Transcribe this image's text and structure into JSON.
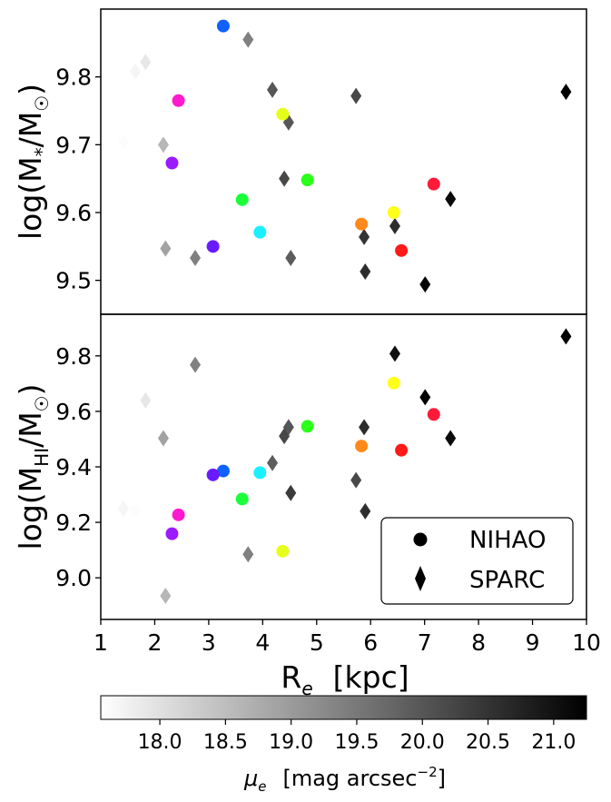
{
  "chart_data": {
    "type": "scatter",
    "x_axis": {
      "label_main": "R",
      "label_sub": "e",
      "label_unit": "[kpc]",
      "range": [
        1,
        10
      ],
      "ticks": [
        "1",
        "2",
        "3",
        "4",
        "5",
        "6",
        "7",
        "8",
        "9",
        "10"
      ]
    },
    "panels": [
      {
        "name": "top",
        "ylabel_prefix": "log(M",
        "ylabel_sub": "*",
        "ylabel_mid": "/M",
        "ylabel_sub2": "☉",
        "ylabel_suffix": ")",
        "ylim": [
          9.45,
          9.9
        ],
        "yticks": [
          "9.5",
          "9.6",
          "9.7",
          "9.8"
        ],
        "nihao": [
          {
            "x": 3.27,
            "y": 9.875,
            "color": "#0f62fe"
          },
          {
            "x": 2.44,
            "y": 9.765,
            "color": "#ff1ad0"
          },
          {
            "x": 4.37,
            "y": 9.745,
            "color": "#e6ff1a"
          },
          {
            "x": 2.32,
            "y": 9.673,
            "color": "#9b1aff"
          },
          {
            "x": 4.83,
            "y": 9.648,
            "color": "#2bff1a"
          },
          {
            "x": 7.17,
            "y": 9.642,
            "color": "#ff1a3a"
          },
          {
            "x": 3.62,
            "y": 9.619,
            "color": "#1aff3a"
          },
          {
            "x": 6.43,
            "y": 9.6,
            "color": "#ffff1a"
          },
          {
            "x": 5.83,
            "y": 9.583,
            "color": "#ff8a1a"
          },
          {
            "x": 3.95,
            "y": 9.571,
            "color": "#1af0ff"
          },
          {
            "x": 3.08,
            "y": 9.55,
            "color": "#6a1aff"
          },
          {
            "x": 6.57,
            "y": 9.544,
            "color": "#ff1a1a"
          }
        ],
        "sparc": [
          {
            "x": 3.73,
            "y": 9.855,
            "mu": 19.4
          },
          {
            "x": 1.83,
            "y": 9.822,
            "mu": 17.9
          },
          {
            "x": 1.64,
            "y": 9.808,
            "mu": 17.7
          },
          {
            "x": 4.18,
            "y": 9.781,
            "mu": 20.0
          },
          {
            "x": 9.62,
            "y": 9.778,
            "mu": 21.3
          },
          {
            "x": 5.73,
            "y": 9.772,
            "mu": 20.2
          },
          {
            "x": 4.48,
            "y": 9.733,
            "mu": 20.0
          },
          {
            "x": 1.42,
            "y": 9.705,
            "mu": 17.6
          },
          {
            "x": 2.16,
            "y": 9.7,
            "mu": 18.6
          },
          {
            "x": 4.4,
            "y": 9.65,
            "mu": 20.2
          },
          {
            "x": 7.48,
            "y": 9.62,
            "mu": 21.1
          },
          {
            "x": 6.45,
            "y": 9.58,
            "mu": 20.6
          },
          {
            "x": 5.88,
            "y": 9.564,
            "mu": 20.5
          },
          {
            "x": 2.2,
            "y": 9.547,
            "mu": 18.9
          },
          {
            "x": 2.75,
            "y": 9.533,
            "mu": 19.4
          },
          {
            "x": 4.52,
            "y": 9.533,
            "mu": 19.9
          },
          {
            "x": 5.9,
            "y": 9.513,
            "mu": 20.6
          },
          {
            "x": 7.01,
            "y": 9.494,
            "mu": 21.2
          }
        ]
      },
      {
        "name": "bottom",
        "ylabel_prefix": "log(M",
        "ylabel_sub": "HI",
        "ylabel_mid": "/M",
        "ylabel_sub2": "☉",
        "ylabel_suffix": ")",
        "ylim": [
          8.85,
          9.95
        ],
        "yticks": [
          "9.0",
          "9.2",
          "9.4",
          "9.6",
          "9.8"
        ],
        "nihao": [
          {
            "x": 6.43,
            "y": 9.702,
            "color": "#ffff1a"
          },
          {
            "x": 7.17,
            "y": 9.589,
            "color": "#ff1a3a"
          },
          {
            "x": 4.83,
            "y": 9.546,
            "color": "#2bff1a"
          },
          {
            "x": 5.83,
            "y": 9.475,
            "color": "#ff8a1a"
          },
          {
            "x": 6.57,
            "y": 9.46,
            "color": "#ff1a1a"
          },
          {
            "x": 3.27,
            "y": 9.385,
            "color": "#0f62fe"
          },
          {
            "x": 3.95,
            "y": 9.379,
            "color": "#1af0ff"
          },
          {
            "x": 3.08,
            "y": 9.371,
            "color": "#6a1aff"
          },
          {
            "x": 3.62,
            "y": 9.284,
            "color": "#1aff3a"
          },
          {
            "x": 2.44,
            "y": 9.227,
            "color": "#ff1ad0"
          },
          {
            "x": 2.32,
            "y": 9.159,
            "color": "#9b1aff"
          },
          {
            "x": 4.37,
            "y": 9.096,
            "color": "#e6ff1a"
          }
        ],
        "sparc": [
          {
            "x": 9.62,
            "y": 9.87,
            "mu": 21.3
          },
          {
            "x": 6.45,
            "y": 9.808,
            "mu": 21.0
          },
          {
            "x": 2.75,
            "y": 9.768,
            "mu": 19.4
          },
          {
            "x": 7.01,
            "y": 9.651,
            "mu": 21.2
          },
          {
            "x": 1.83,
            "y": 9.64,
            "mu": 17.9
          },
          {
            "x": 5.88,
            "y": 9.543,
            "mu": 20.6
          },
          {
            "x": 4.48,
            "y": 9.543,
            "mu": 20.0
          },
          {
            "x": 4.4,
            "y": 9.511,
            "mu": 20.2
          },
          {
            "x": 2.16,
            "y": 9.503,
            "mu": 18.9
          },
          {
            "x": 7.48,
            "y": 9.503,
            "mu": 21.1
          },
          {
            "x": 4.18,
            "y": 9.414,
            "mu": 19.9
          },
          {
            "x": 5.73,
            "y": 9.352,
            "mu": 20.2
          },
          {
            "x": 4.52,
            "y": 9.306,
            "mu": 20.4
          },
          {
            "x": 1.42,
            "y": 9.249,
            "mu": 17.7
          },
          {
            "x": 1.64,
            "y": 9.245,
            "mu": 17.6
          },
          {
            "x": 5.9,
            "y": 9.24,
            "mu": 20.6
          },
          {
            "x": 3.73,
            "y": 9.085,
            "mu": 19.4
          },
          {
            "x": 2.2,
            "y": 8.935,
            "mu": 18.6
          }
        ]
      }
    ],
    "legend": {
      "placement": "lower-right",
      "entries": [
        {
          "marker": "circle",
          "label": "NIHAO"
        },
        {
          "marker": "diamond",
          "label": "SPARC"
        }
      ]
    },
    "colorbar": {
      "range": [
        17.55,
        21.25
      ],
      "ticks": [
        "18.0",
        "18.5",
        "19.0",
        "19.5",
        "20.0",
        "20.5",
        "21.0"
      ],
      "label_main": "μ",
      "label_sub": "e",
      "label_unit": "[mag arcsec",
      "label_exp": "−2",
      "label_close": "]",
      "colormap": "gray_r"
    }
  }
}
